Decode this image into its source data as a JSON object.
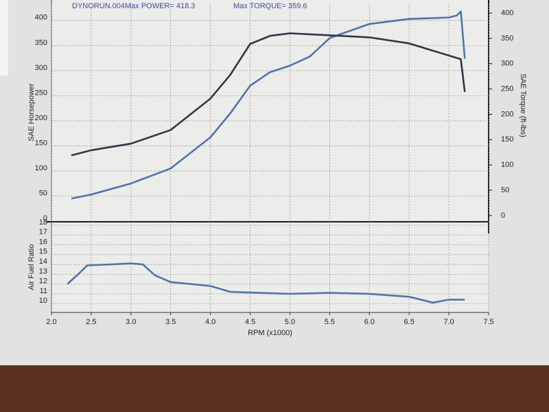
{
  "chart_data": [
    {
      "type": "line",
      "annotations": [
        "DYNORUN.004",
        "Max POWER= 418.3",
        "Max TORQUE= 359.6"
      ],
      "ylabel": "SAE Horsepower",
      "y2label": "SAE Torque (ft-lbs)",
      "xlim": [
        2.0,
        7.5
      ],
      "ylim": [
        0,
        434
      ],
      "yticks": [
        0,
        50,
        100,
        150,
        200,
        250,
        300,
        350,
        400
      ],
      "y2lim": [
        -11,
        419
      ],
      "y2ticks": [
        0,
        50,
        100,
        150,
        200,
        250,
        300,
        350,
        400
      ],
      "grid": true,
      "series": [
        {
          "color": "#4f74aa",
          "x": [
            2.25,
            2.5,
            3.0,
            3.5,
            4.0,
            4.25,
            4.5,
            4.75,
            5.0,
            5.25,
            5.5,
            6.0,
            6.5,
            7.0,
            7.1,
            7.15,
            7.2
          ],
          "values": [
            45,
            53,
            75,
            105,
            167,
            215,
            270,
            297,
            310,
            328,
            365,
            393,
            403,
            406,
            410,
            418,
            324
          ]
        },
        {
          "color": "#2e3546",
          "axis": "y2",
          "x": [
            2.25,
            2.5,
            3.0,
            3.5,
            4.0,
            4.25,
            4.5,
            4.75,
            5.0,
            5.5,
            6.0,
            6.5,
            7.0,
            7.15,
            7.2
          ],
          "values": [
            119,
            129,
            142,
            169,
            231,
            278,
            339,
            355,
            360,
            356,
            352,
            340,
            316,
            309,
            244
          ]
        }
      ]
    },
    {
      "type": "line",
      "ylabel": "Air Fuel Ratio",
      "xlabel": "RPM (x1000)",
      "xlim": [
        2.0,
        7.5
      ],
      "xticks": [
        {
          "value": 2,
          "label": "2.0"
        },
        2.5,
        {
          "value": 3,
          "label": "3.0"
        },
        3.5,
        {
          "value": 4,
          "label": "4.0"
        },
        4.5,
        {
          "value": 5,
          "label": "5.0"
        },
        5.5,
        {
          "value": 6,
          "label": "6.0"
        },
        6.5,
        {
          "value": 7,
          "label": "7.0"
        },
        7.5
      ],
      "ylim": [
        9.1,
        18.35
      ],
      "yticks": [
        10,
        11,
        12,
        13,
        14,
        15,
        16,
        17,
        18
      ],
      "grid": true,
      "series": [
        {
          "color": "#4f74aa",
          "x": [
            2.2,
            2.35,
            2.45,
            2.75,
            3.0,
            3.15,
            3.3,
            3.5,
            4.0,
            4.25,
            5.0,
            5.5,
            6.0,
            6.5,
            6.8,
            7.0,
            7.2
          ],
          "values": [
            12.0,
            13.1,
            13.9,
            14.0,
            14.1,
            14.0,
            12.9,
            12.2,
            11.8,
            11.2,
            11.0,
            11.1,
            11.0,
            10.7,
            10.1,
            10.4,
            10.4
          ]
        }
      ]
    }
  ]
}
